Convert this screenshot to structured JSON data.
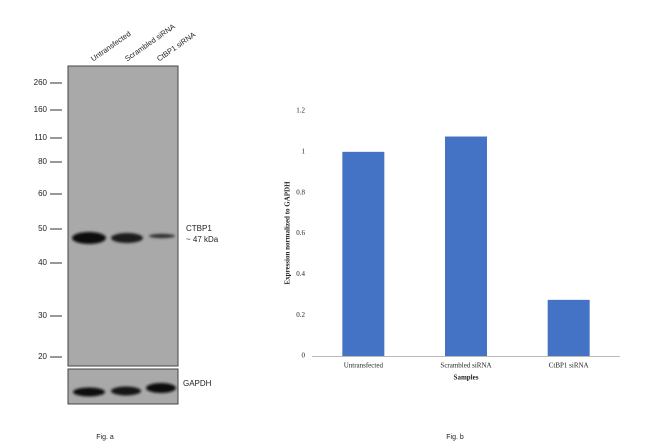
{
  "blot": {
    "lanes": [
      "Untransfected",
      "Scrambled siRNA",
      "CtBP1 siRNA"
    ],
    "markers": [
      "260",
      "160",
      "110",
      "80",
      "60",
      "50",
      "40",
      "30",
      "20"
    ],
    "band_label": "CTBP1",
    "band_size": "~ 47 kDa",
    "loading_control": "GAPDH",
    "caption": "Fig. a"
  },
  "chart_data": {
    "type": "bar",
    "categories": [
      "Untransfected",
      "Scrambled siRNA",
      "CtBP1 siRNA"
    ],
    "values": [
      1.0,
      1.075,
      0.275
    ],
    "color": "#4472c4",
    "ylim": [
      0,
      1.2
    ],
    "yticks": [
      0,
      0.2,
      0.4,
      0.6,
      0.8,
      1,
      1.2
    ],
    "x_label": "Samples",
    "y_label": "Expression normalized to GAPDH",
    "grid": false,
    "caption": "Fig. b"
  }
}
